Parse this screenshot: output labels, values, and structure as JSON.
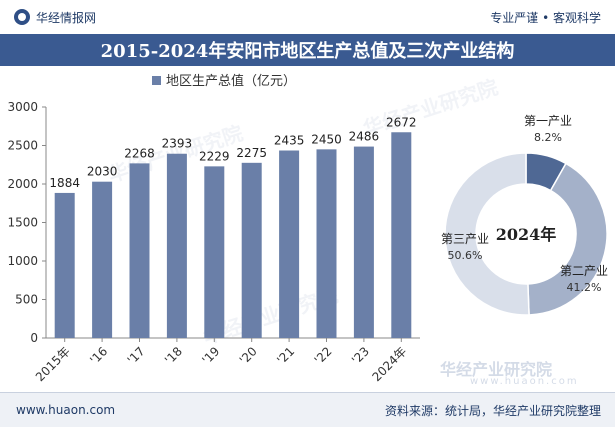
{
  "header": {
    "brand": "华经情报网",
    "slogan": "专业严谨 • 客观科学"
  },
  "title": "2015-2024年安阳市地区生产总值及三次产业结构",
  "chart_data": [
    {
      "type": "bar",
      "legend": "地区生产总值（亿元）",
      "categories": [
        "2015年",
        "'16",
        "'17",
        "'18",
        "'19",
        "'20",
        "'21",
        "'22",
        "'23",
        "2024年"
      ],
      "values": [
        1884,
        2030,
        2268,
        2393,
        2229,
        2275,
        2435,
        2450,
        2486,
        2672
      ],
      "ylim": [
        0,
        3000
      ],
      "yticks": [
        0,
        500,
        1000,
        1500,
        2000,
        2500,
        3000
      ],
      "grid": false,
      "bar_color": "#6a7fa8"
    },
    {
      "type": "pie",
      "center_label": "2024年",
      "slices": [
        {
          "name": "第一产业",
          "value": 8.2,
          "label": "8.2%",
          "color": "#4f6894"
        },
        {
          "name": "第二产业",
          "value": 41.2,
          "label": "41.2%",
          "color": "#a4b1c9"
        },
        {
          "name": "第三产业",
          "value": 50.6,
          "label": "50.6%",
          "color": "#d9dfea"
        }
      ]
    }
  ],
  "watermark": {
    "text": "华经产业研究院",
    "url": "www.huaon.com"
  },
  "footer": {
    "website": "www.huaon.com",
    "source": "资料来源：统计局，华经产业研究院整理"
  }
}
